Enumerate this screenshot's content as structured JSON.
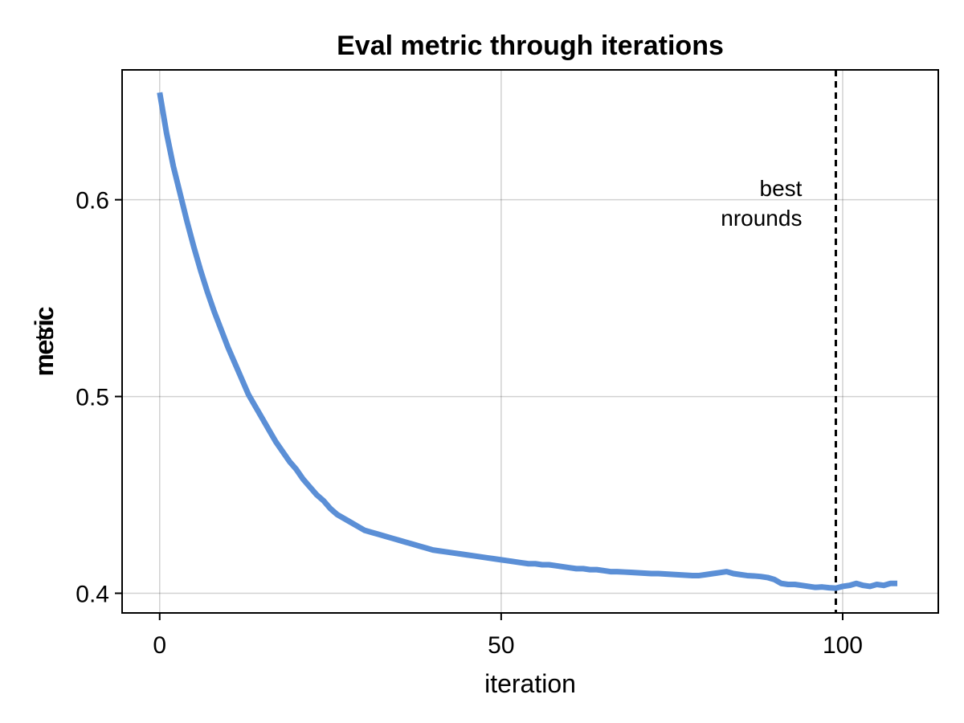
{
  "chart_data": {
    "type": "line",
    "title": "Eval metric through iterations",
    "xlabel": "iteration",
    "ylabel_lines": [
      "metric",
      "mesic"
    ],
    "xlim": [
      -5.5,
      114
    ],
    "ylim": [
      0.39,
      0.666
    ],
    "xticks": [
      0,
      50,
      100
    ],
    "xtick_labels": [
      "0",
      "50",
      "100"
    ],
    "yticks": [
      0.4,
      0.5,
      0.6
    ],
    "ytick_labels": [
      "0.4",
      "0.5",
      "0.6"
    ],
    "grid": true,
    "line_color": "#5b8fd6",
    "series": [
      {
        "x": [
          0,
          1,
          2,
          3,
          4,
          5,
          6,
          7,
          8,
          9,
          10,
          11,
          12,
          13,
          14,
          15,
          16,
          17,
          18,
          19,
          20,
          21,
          22,
          23,
          24,
          25,
          26,
          27,
          28,
          29,
          30,
          31,
          32,
          33,
          34,
          35,
          36,
          37,
          38,
          39,
          40,
          41,
          42,
          43,
          44,
          45,
          46,
          47,
          48,
          49,
          50,
          51,
          52,
          53,
          54,
          55,
          56,
          57,
          58,
          59,
          60,
          61,
          62,
          63,
          64,
          65,
          66,
          67,
          68,
          69,
          70,
          71,
          72,
          73,
          74,
          75,
          76,
          77,
          78,
          79,
          80,
          81,
          82,
          83,
          84,
          85,
          86,
          87,
          88,
          89,
          90,
          91,
          92,
          93,
          94,
          95,
          96,
          97,
          98,
          99,
          100,
          101,
          102,
          103,
          104,
          105,
          106,
          107,
          108
        ],
        "values": [
          0.6545,
          0.634,
          0.617,
          0.603,
          0.589,
          0.576,
          0.564,
          0.553,
          0.543,
          0.534,
          0.525,
          0.517,
          0.509,
          0.501,
          0.495,
          0.489,
          0.483,
          0.477,
          0.472,
          0.467,
          0.463,
          0.458,
          0.454,
          0.45,
          0.447,
          0.443,
          0.44,
          0.438,
          0.436,
          0.434,
          0.432,
          0.431,
          0.43,
          0.429,
          0.428,
          0.427,
          0.426,
          0.425,
          0.424,
          0.423,
          0.422,
          0.4215,
          0.421,
          0.4205,
          0.42,
          0.4195,
          0.419,
          0.4185,
          0.418,
          0.4175,
          0.417,
          0.4165,
          0.416,
          0.4155,
          0.415,
          0.415,
          0.4145,
          0.4145,
          0.414,
          0.4135,
          0.413,
          0.4125,
          0.4125,
          0.412,
          0.412,
          0.4115,
          0.411,
          0.411,
          0.4108,
          0.4106,
          0.4104,
          0.4102,
          0.41,
          0.41,
          0.4098,
          0.4096,
          0.4094,
          0.4092,
          0.409,
          0.409,
          0.4095,
          0.41,
          0.4105,
          0.411,
          0.41,
          0.4095,
          0.409,
          0.4088,
          0.4085,
          0.408,
          0.407,
          0.405,
          0.4045,
          0.4045,
          0.404,
          0.4035,
          0.403,
          0.4032,
          0.4028,
          0.4026,
          0.4035,
          0.404,
          0.405,
          0.404,
          0.4035,
          0.4045,
          0.404,
          0.405,
          0.405
        ]
      }
    ],
    "annotation": {
      "x": 99,
      "label_lines": [
        "best",
        "nrounds"
      ],
      "line_style": "dashed"
    }
  }
}
